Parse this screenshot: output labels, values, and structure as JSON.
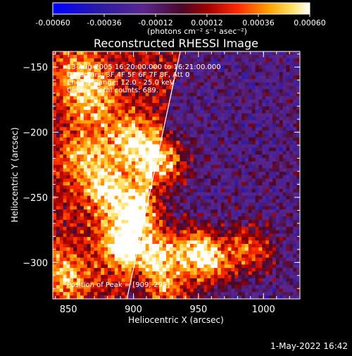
{
  "chart_data": {
    "type": "heatmap",
    "title": "Reconstructed RHESSI Image",
    "xlabel": "Heliocentric X (arcsec)",
    "ylabel": "Heliocentric Y (arcsec)",
    "xlim": [
      838,
      1028
    ],
    "ylim": [
      -328,
      -138
    ],
    "xticks": [
      850,
      900,
      950,
      1000
    ],
    "yticks": [
      -300,
      -250,
      -200,
      -150
    ],
    "colorbar": {
      "min": -0.0006,
      "max": 0.0006,
      "ticks": [
        "-0.00060",
        "-0.00036",
        "-0.00012",
        "0.00012",
        "0.00036",
        "0.00060"
      ],
      "label": "(photons cm⁻² s⁻¹ asec⁻²)"
    },
    "annotations": [
      "13-Aug-2005 16:20:00.000 to 16:21:00.000",
      "Detectors: 3F 4F 5F 6F 7F 8F, Att 0",
      "Energy Range: 12.0 - 25.0 keV",
      "Clean    Total counts: 689."
    ],
    "peak_label": "Position of Peak = [909,-295]",
    "peak": [
      909,
      -295
    ],
    "limb_line": [
      [
        895,
        -328
      ],
      [
        936,
        -138
      ]
    ],
    "sources": [
      {
        "x": 921,
        "y": -223,
        "amp": 1.0
      },
      {
        "x": 906,
        "y": -262,
        "amp": 0.85
      },
      {
        "x": 916,
        "y": -295,
        "amp": 0.95
      },
      {
        "x": 893,
        "y": -285,
        "amp": 0.75
      },
      {
        "x": 880,
        "y": -245,
        "amp": 0.7
      },
      {
        "x": 862,
        "y": -218,
        "amp": 0.55
      },
      {
        "x": 868,
        "y": -175,
        "amp": 0.55
      },
      {
        "x": 897,
        "y": -205,
        "amp": 0.6
      },
      {
        "x": 947,
        "y": -290,
        "amp": 0.75
      },
      {
        "x": 960,
        "y": -300,
        "amp": 0.7
      },
      {
        "x": 990,
        "y": -290,
        "amp": 0.7
      },
      {
        "x": 848,
        "y": -310,
        "amp": 0.55
      },
      {
        "x": 925,
        "y": -322,
        "amp": 0.7
      },
      {
        "x": 858,
        "y": -155,
        "amp": 0.45
      }
    ],
    "grid": false
  },
  "footer": {
    "date": "1-May-2022 16:42"
  }
}
